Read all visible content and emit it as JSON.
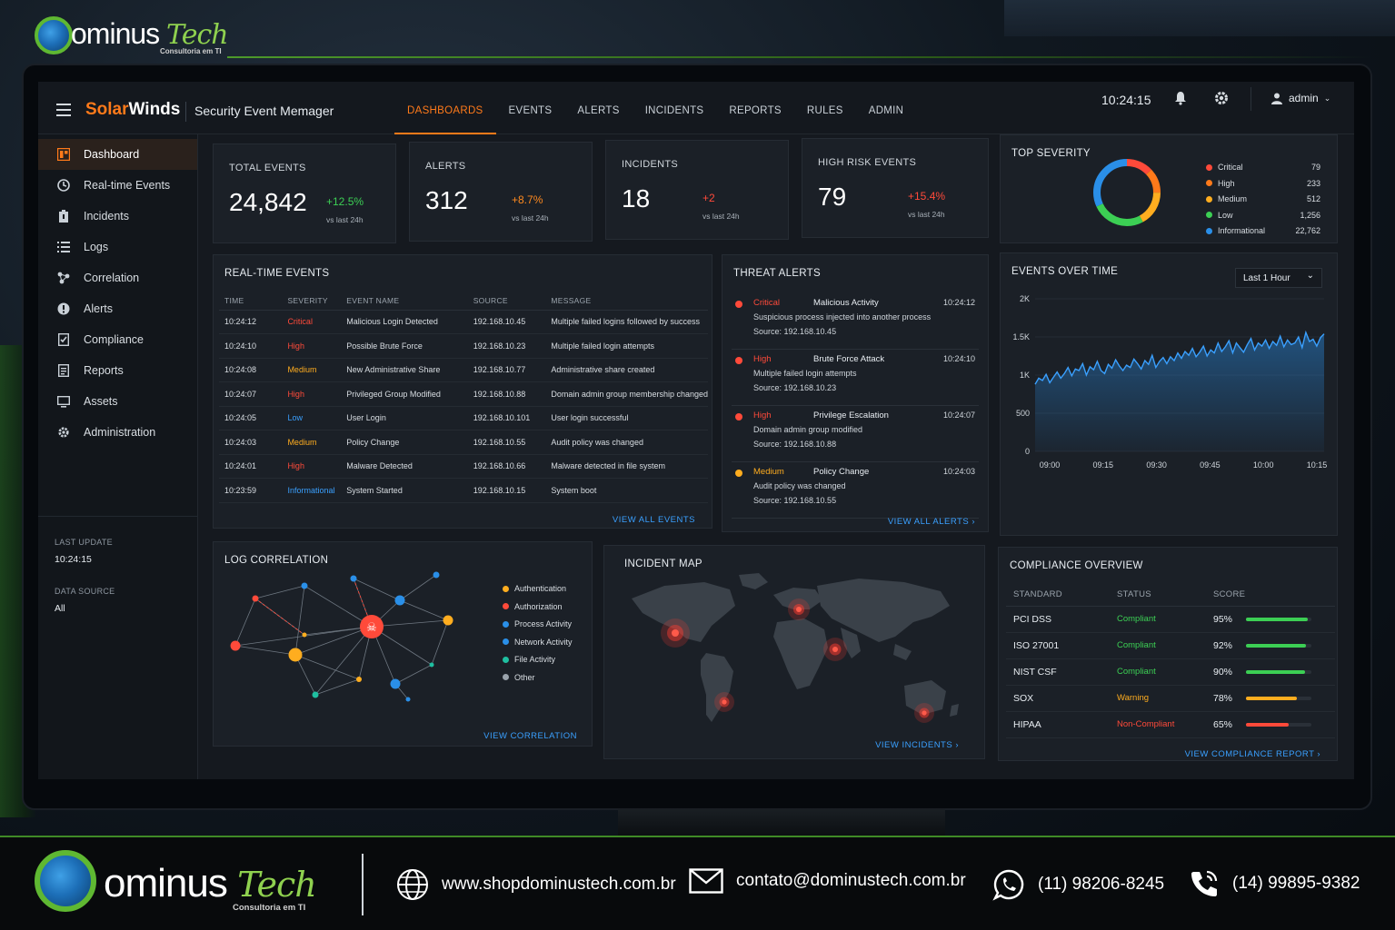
{
  "brand": {
    "word": "ominus",
    "tech": "Tech",
    "sub": "Consultoria em TI"
  },
  "app": {
    "logo_solar": "Solar",
    "logo_winds": "Winds",
    "title": "Security Event Memager",
    "clock": "10:24:15",
    "user": "admin"
  },
  "nav": {
    "tabs": [
      "DASHBOARDS",
      "EVENTS",
      "ALERTS",
      "INCIDENTS",
      "REPORTS",
      "RULES",
      "ADMIN"
    ]
  },
  "sidebar": {
    "items": [
      {
        "label": "Dashboard",
        "icon": "dashboard-icon"
      },
      {
        "label": "Real-time Events",
        "icon": "realtime-icon"
      },
      {
        "label": "Incidents",
        "icon": "incidents-icon"
      },
      {
        "label": "Logs",
        "icon": "logs-icon"
      },
      {
        "label": "Correlation",
        "icon": "correlation-icon"
      },
      {
        "label": "Alerts",
        "icon": "alert-icon"
      },
      {
        "label": "Compliance",
        "icon": "compliance-icon"
      },
      {
        "label": "Reports",
        "icon": "reports-icon"
      },
      {
        "label": "Assets",
        "icon": "assets-icon"
      },
      {
        "label": "Administration",
        "icon": "gear-icon"
      }
    ],
    "last_update_label": "LAST UPDATE",
    "last_update_value": "10:24:15",
    "data_source_label": "DATA SOURCE",
    "data_source_value": "All"
  },
  "kpis": [
    {
      "label": "TOTAL EVENTS",
      "value": "24,842",
      "delta": "+12.5%",
      "vs": "vs last 24h"
    },
    {
      "label": "ALERTS",
      "value": "312",
      "delta": "+8.7%",
      "vs": "vs last 24h"
    },
    {
      "label": "INCIDENTS",
      "value": "18",
      "delta": "+2",
      "vs": "vs last 24h"
    },
    {
      "label": "HIGH RISK EVENTS",
      "value": "79",
      "delta": "+15.4%",
      "vs": "vs last 24h"
    }
  ],
  "top_severity": {
    "title": "TOP SEVERITY",
    "items": [
      {
        "label": "Critical",
        "value": "79",
        "color": "#ff4a3a"
      },
      {
        "label": "High",
        "value": "233",
        "color": "#ff7a1a"
      },
      {
        "label": "Medium",
        "value": "512",
        "color": "#ffad1f"
      },
      {
        "label": "Low",
        "value": "1,256",
        "color": "#3ccf54"
      },
      {
        "label": "Informational",
        "value": "22,762",
        "color": "#2a8fe8"
      }
    ]
  },
  "realtime": {
    "title": "REAL-TIME EVENTS",
    "headers": [
      "TIME",
      "SEVERITY",
      "EVENT NAME",
      "SOURCE",
      "MESSAGE"
    ],
    "rows": [
      {
        "time": "10:24:12",
        "severity": "Critical",
        "name": "Malicious Login Detected",
        "source": "192.168.10.45",
        "message": "Multiple failed logins followed by success"
      },
      {
        "time": "10:24:10",
        "severity": "High",
        "name": "Possible Brute Force",
        "source": "192.168.10.23",
        "message": "Multiple failed login attempts"
      },
      {
        "time": "10:24:08",
        "severity": "Medium",
        "name": "New Administrative Share",
        "source": "192.168.10.77",
        "message": "Administrative share created"
      },
      {
        "time": "10:24:07",
        "severity": "High",
        "name": "Privileged Group Modified",
        "source": "192.168.10.88",
        "message": "Domain admin group membership changed"
      },
      {
        "time": "10:24:05",
        "severity": "Low",
        "name": "User Login",
        "source": "192.168.10.101",
        "message": "User login successful"
      },
      {
        "time": "10:24:03",
        "severity": "Medium",
        "name": "Policy Change",
        "source": "192.168.10.55",
        "message": "Audit policy was changed"
      },
      {
        "time": "10:24:01",
        "severity": "High",
        "name": "Malware Detected",
        "source": "192.168.10.66",
        "message": "Malware detected in file system"
      },
      {
        "time": "10:23:59",
        "severity": "Informational",
        "name": "System Started",
        "source": "192.168.10.15",
        "message": "System boot"
      }
    ],
    "link": "VIEW ALL EVENTS"
  },
  "threats": {
    "title": "THREAT ALERTS",
    "items": [
      {
        "severity": "Critical",
        "name": "Malicious Activity",
        "time": "10:24:12",
        "desc": "Suspicious process injected into another process",
        "source": "Source: 192.168.10.45",
        "color": "#ff4a3a"
      },
      {
        "severity": "High",
        "name": "Brute Force Attack",
        "time": "10:24:10",
        "desc": "Multiple failed login attempts",
        "source": "Source: 192.168.10.23",
        "color": "#ff4a3a"
      },
      {
        "severity": "High",
        "name": "Privilege Escalation",
        "time": "10:24:07",
        "desc": "Domain admin group modified",
        "source": "Source: 192.168.10.88",
        "color": "#ff4a3a"
      },
      {
        "severity": "Medium",
        "name": "Policy Change",
        "time": "10:24:03",
        "desc": "Audit policy was changed",
        "source": "Source: 192.168.10.55",
        "color": "#ffad1f"
      }
    ],
    "link": "VIEW ALL ALERTS  ›"
  },
  "events_over_time": {
    "title": "EVENTS OVER TIME",
    "range": "Last 1 Hour"
  },
  "chart_data": {
    "type": "area",
    "title": "EVENTS OVER TIME",
    "x_ticks": [
      "09:00",
      "09:15",
      "09:30",
      "09:45",
      "10:00",
      "10:15"
    ],
    "y_ticks": [
      "0",
      "500",
      "1K",
      "1.5K",
      "2K"
    ],
    "ylim": [
      0,
      2000
    ],
    "xlim": [
      0,
      79
    ],
    "values": [
      880,
      960,
      930,
      1010,
      900,
      970,
      1040,
      960,
      1020,
      1100,
      990,
      1080,
      1060,
      1150,
      1000,
      1110,
      1070,
      1180,
      1060,
      1020,
      1140,
      1090,
      1200,
      1120,
      1060,
      1130,
      1100,
      1210,
      1150,
      1080,
      1190,
      1140,
      1260,
      1100,
      1180,
      1230,
      1150,
      1240,
      1190,
      1290,
      1220,
      1310,
      1260,
      1350,
      1240,
      1300,
      1380,
      1250,
      1330,
      1290,
      1420,
      1310,
      1370,
      1450,
      1290,
      1420,
      1360,
      1300,
      1400,
      1480,
      1330,
      1420,
      1380,
      1460,
      1350,
      1440,
      1390,
      1510,
      1370,
      1460,
      1400,
      1420,
      1500,
      1360,
      1560,
      1440,
      1470,
      1380,
      1490,
      1540
    ]
  },
  "log_correlation": {
    "title": "LOG CORRELATION",
    "legend": [
      {
        "label": "Authentication",
        "color": "#ffad1f"
      },
      {
        "label": "Authorization",
        "color": "#ff4a3a"
      },
      {
        "label": "Process Activity",
        "color": "#2a8fe8"
      },
      {
        "label": "Network Activity",
        "color": "#2a8fe8"
      },
      {
        "label": "File Activity",
        "color": "#1fbfa0"
      },
      {
        "label": "Other",
        "color": "#9aa3ac"
      }
    ],
    "link": "VIEW CORRELATION"
  },
  "incident_map": {
    "title": "INCIDENT MAP",
    "link": "VIEW INCIDENTS  ›"
  },
  "compliance": {
    "title": "COMPLIANCE OVERVIEW",
    "headers": [
      "STANDARD",
      "STATUS",
      "SCORE"
    ],
    "rows": [
      {
        "standard": "PCI DSS",
        "status": "Compliant",
        "score": "95%",
        "pct": 95,
        "color": "#3ccf54"
      },
      {
        "standard": "ISO 27001",
        "status": "Compliant",
        "score": "92%",
        "pct": 92,
        "color": "#3ccf54"
      },
      {
        "standard": "NIST CSF",
        "status": "Compliant",
        "score": "90%",
        "pct": 90,
        "color": "#3ccf54"
      },
      {
        "standard": "SOX",
        "status": "Warning",
        "score": "78%",
        "pct": 78,
        "color": "#ffad1f"
      },
      {
        "standard": "HIPAA",
        "status": "Non-Compliant",
        "score": "65%",
        "pct": 65,
        "color": "#ff4a3a"
      }
    ],
    "link": "VIEW COMPLIANCE REPORT  ›"
  },
  "footer": {
    "website": "www.shopdominustech.com.br",
    "email": "contato@dominustech.com.br",
    "whatsapp": "(11) 98206-8245",
    "phone": "(14) 99895-9382"
  }
}
